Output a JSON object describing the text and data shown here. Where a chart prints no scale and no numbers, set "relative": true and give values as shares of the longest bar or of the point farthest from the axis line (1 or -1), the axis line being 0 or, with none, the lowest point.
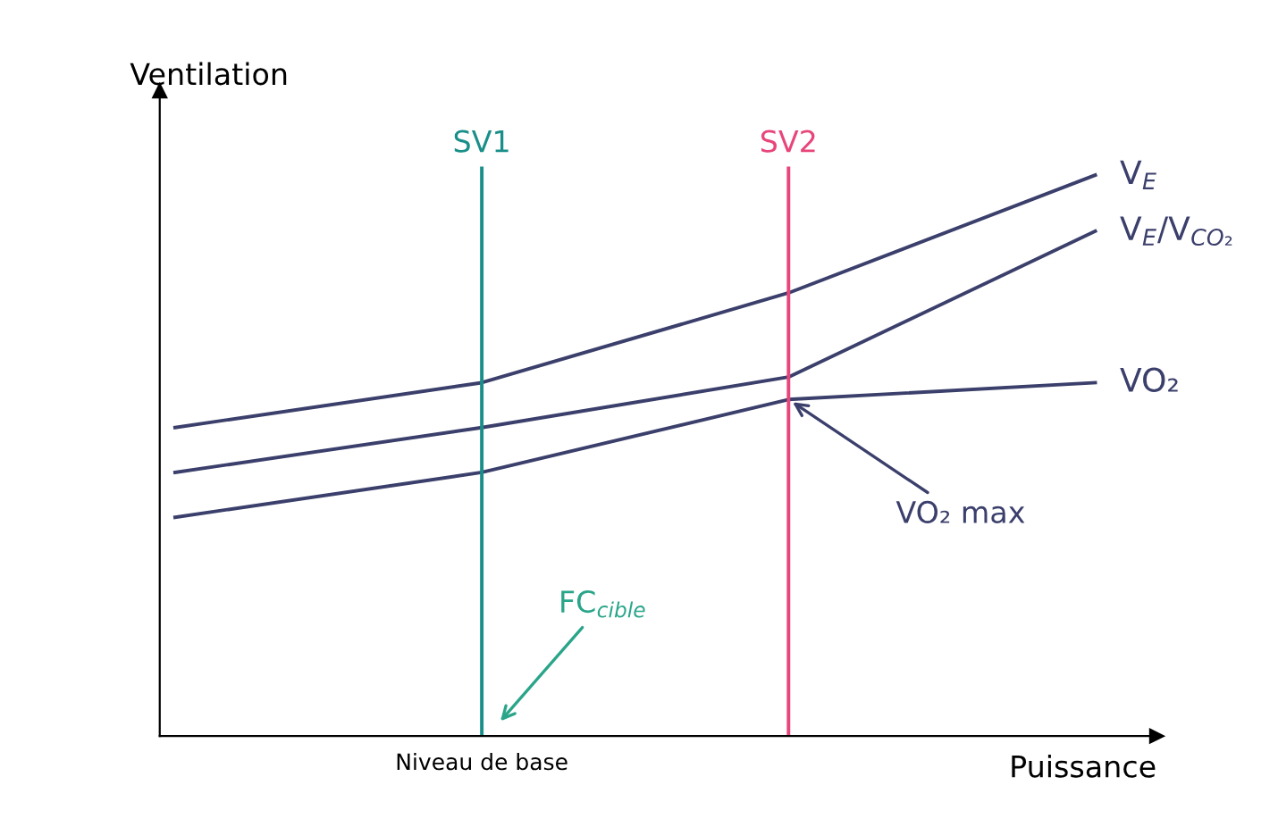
{
  "chart_data": {
    "type": "line",
    "relative": true,
    "xlabel": "Puissance",
    "ylabel": "Ventilation",
    "categories": [
      null,
      null,
      null,
      null
    ],
    "series": [
      {
        "name": "V$_{E}$",
        "color": "#3b3f6b",
        "values": [
          0.55,
          0.63,
          0.79,
          1
        ]
      },
      {
        "name": "V$_{E}$/V$_{CO₂}$",
        "color": "#3b3f6b",
        "values": [
          0.47,
          0.55,
          0.64,
          0.9
        ]
      },
      {
        "name": "VO₂",
        "color": "#3b3f6b",
        "values": [
          0.39,
          0.47,
          0.6,
          0.63
        ]
      }
    ],
    "annotations": [
      "VO₂ max",
      "FC$_{cible}$",
      "Niveau de base",
      "SV1",
      "SV2"
    ],
    "grid": false,
    "legend": false,
    "marker": "none",
    "line_style": "solid"
  }
}
